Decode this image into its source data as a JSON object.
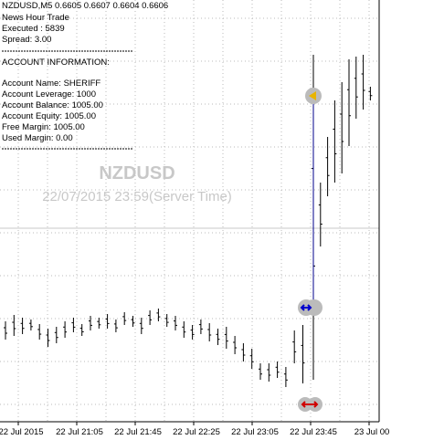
{
  "header": {
    "symbol_line": "NZDUSD,M5  0.6605 0.6607 0.6604 0.6606",
    "info": [
      "News Hour Trade",
      "Executed : 5839",
      "Spread: 3.00"
    ]
  },
  "account": {
    "title": "ACCOUNT INFORMATION:",
    "rows": [
      "Account Name:    SHERIFF",
      "Account Leverage:    1000",
      "Account Balance:     1005.00",
      "Account Equity:     1005.00",
      "Free Margin:     1005.00",
      "Used Margin:      0.00"
    ]
  },
  "watermark": {
    "symbol": "NZDUSD",
    "time": "22/07/2015 23:59(Server Time)"
  },
  "time_axis": [
    "22 Jul 2015",
    "22 Jul 21:05",
    "22 Jul 21:45",
    "22 Jul 22:25",
    "22 Jul 23:05",
    "22 Jul 23:45",
    "23 Jul 00"
  ]
}
